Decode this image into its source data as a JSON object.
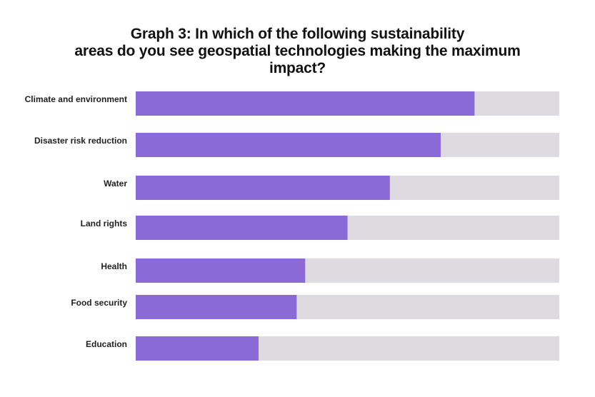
{
  "chart_data": {
    "type": "bar",
    "orientation": "horizontal",
    "title_lines": [
      "Graph 3: In which of the following sustainability",
      "areas do you see geospatial technologies making the maximum",
      "impact?"
    ],
    "categories": [
      "Climate and environment",
      "Disaster risk reduction",
      "Water",
      "Land rights",
      "Health",
      "Food security",
      "Education"
    ],
    "values": [
      80,
      72,
      60,
      50,
      40,
      38,
      29
    ],
    "xlim": [
      0,
      100
    ],
    "grid": false,
    "legend": "none",
    "colors": {
      "bar": "#8a6ad6",
      "track": "#dddbe0"
    }
  }
}
